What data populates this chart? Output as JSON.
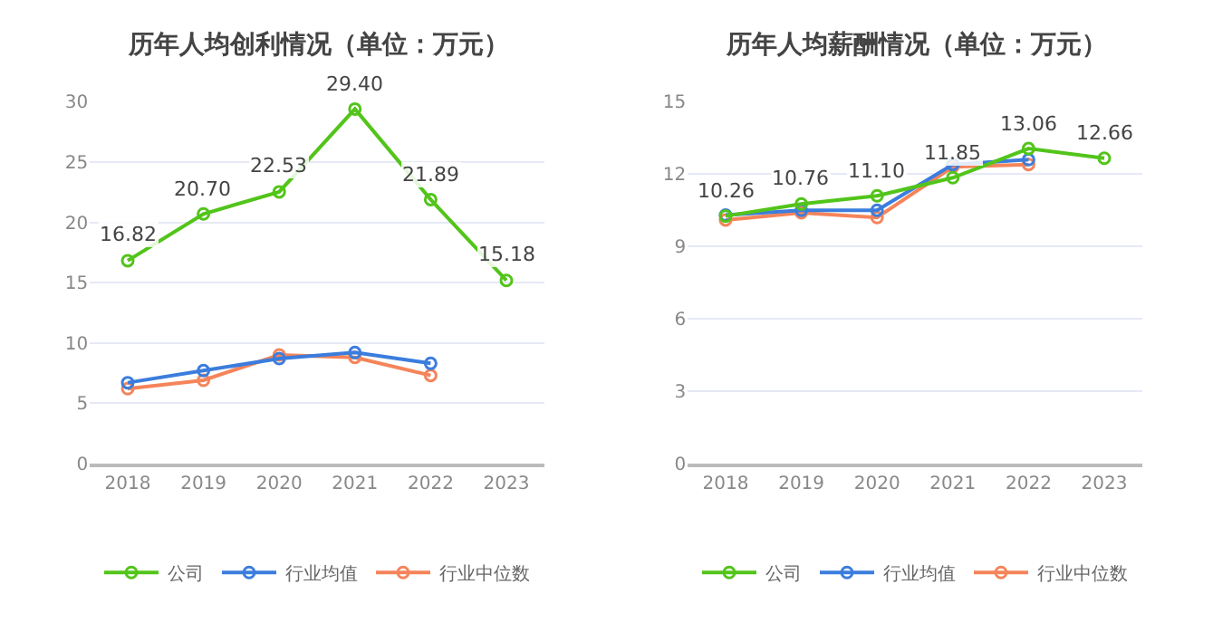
{
  "chart_data": [
    {
      "type": "line",
      "title": "历年人均创利情况（单位：万元）",
      "categories": [
        "2018",
        "2019",
        "2020",
        "2021",
        "2022",
        "2023"
      ],
      "ylim": [
        0,
        30
      ],
      "yticks": [
        0,
        5,
        10,
        15,
        20,
        25,
        30
      ],
      "grid": "y",
      "legend": "bottom",
      "marker": "circle",
      "line_style": "solid",
      "series": [
        {
          "name": "公司",
          "color": "#52c41a",
          "values": [
            16.82,
            20.7,
            22.53,
            29.4,
            21.89,
            15.18
          ],
          "value_labels": [
            "16.82",
            "20.70",
            "22.53",
            "29.40",
            "21.89",
            "15.18"
          ]
        },
        {
          "name": "行业均值",
          "color": "#3b7ddd",
          "values": [
            6.7,
            7.7,
            8.7,
            9.2,
            8.3,
            null
          ]
        },
        {
          "name": "行业中位数",
          "color": "#f5845a",
          "values": [
            6.2,
            6.9,
            9.0,
            8.8,
            7.3,
            null
          ]
        }
      ]
    },
    {
      "type": "line",
      "title": "历年人均薪酬情况（单位：万元）",
      "categories": [
        "2018",
        "2019",
        "2020",
        "2021",
        "2022",
        "2023"
      ],
      "ylim": [
        0,
        15
      ],
      "yticks": [
        0,
        3,
        6,
        9,
        12,
        15
      ],
      "grid": "y",
      "legend": "bottom",
      "marker": "circle",
      "line_style": "solid",
      "series": [
        {
          "name": "公司",
          "color": "#52c41a",
          "values": [
            10.26,
            10.76,
            11.1,
            11.85,
            13.06,
            12.66
          ],
          "value_labels": [
            "10.26",
            "10.76",
            "11.10",
            "11.85",
            "13.06",
            "12.66"
          ]
        },
        {
          "name": "行业均值",
          "color": "#3b7ddd",
          "values": [
            10.3,
            10.5,
            10.5,
            12.4,
            12.6,
            null
          ]
        },
        {
          "name": "行业中位数",
          "color": "#f5845a",
          "values": [
            10.1,
            10.4,
            10.2,
            12.3,
            12.4,
            null
          ]
        }
      ]
    }
  ]
}
